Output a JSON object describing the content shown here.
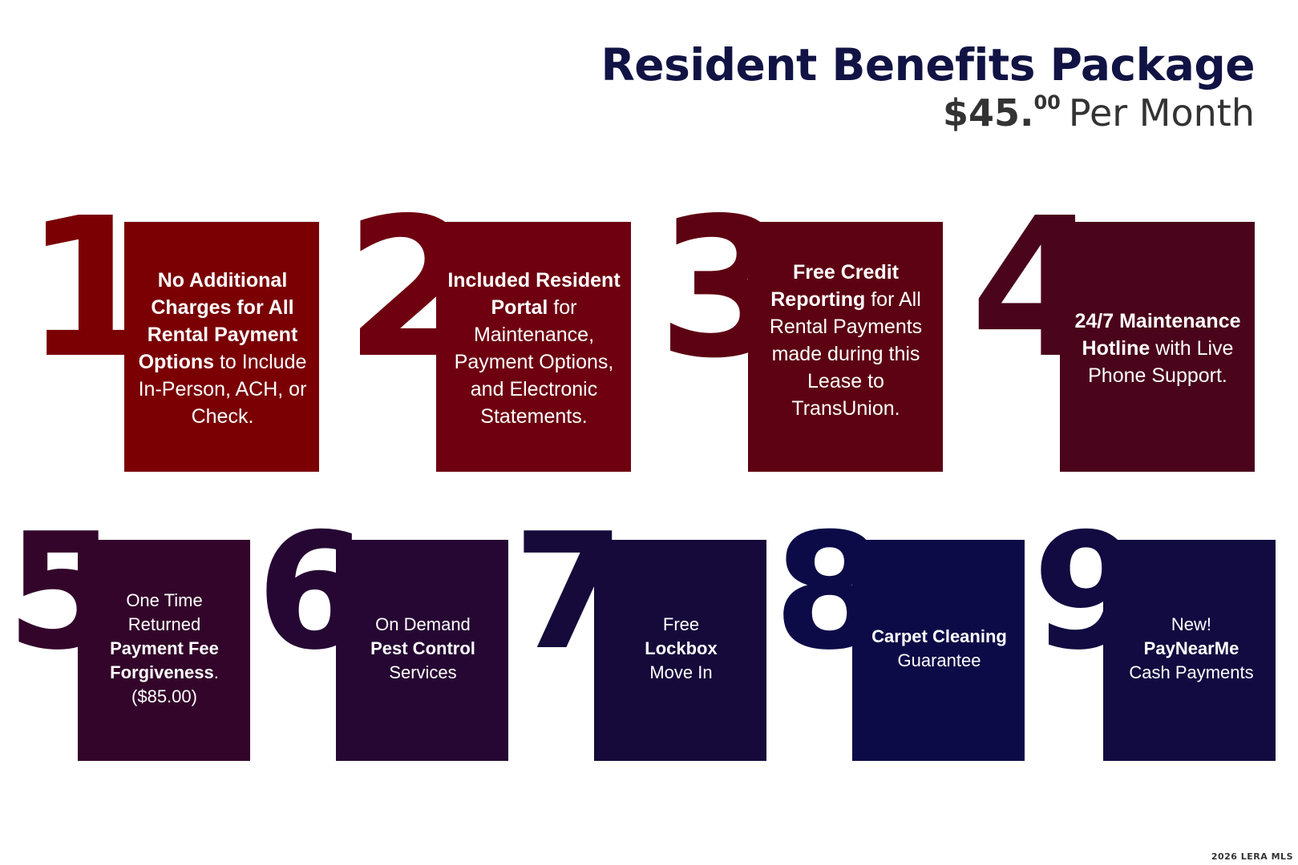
{
  "header": {
    "title": "Resident Benefits Package",
    "price_dollars": "$45.",
    "price_cents": "00",
    "price_unit": "Per Month"
  },
  "benefits": [
    {
      "number": "1",
      "color": "#7a0004",
      "text": [
        {
          "bold": "No Additional Charges for All Rental Payment Options",
          "plain": " to Include In-Person, ACH, or Check."
        }
      ]
    },
    {
      "number": "2",
      "color": "#6e0010",
      "text": [
        {
          "bold": "Included Resident Portal",
          "plain": " for Maintenance, Payment Options, and Electronic Statements."
        }
      ]
    },
    {
      "number": "3",
      "color": "#5d0212",
      "text": [
        {
          "bold": "Free Credit Reporting",
          "plain": " for All Rental Payments made during this Lease to TransUnion."
        }
      ]
    },
    {
      "number": "4",
      "color": "#4a041b",
      "text": [
        {
          "bold": "24/7 Maintenance Hotline",
          "plain": " with Live Phone Support."
        }
      ]
    },
    {
      "number": "5",
      "color": "#33052a",
      "pre": "One Time Returned",
      "bold": "Payment Fee Forgiveness",
      "post": ".",
      "extra": "($85.00)"
    },
    {
      "number": "6",
      "color": "#260733",
      "pre": "On Demand",
      "bold": "Pest Control",
      "post": "",
      "extra": "Services"
    },
    {
      "number": "7",
      "color": "#160a3b",
      "pre": "Free",
      "bold": "Lockbox",
      "post": "",
      "extra": "Move In"
    },
    {
      "number": "8",
      "color": "#0d0b47",
      "pre": "",
      "bold": "Carpet Cleaning",
      "post": "",
      "extra": "Guarantee"
    },
    {
      "number": "9",
      "color": "#110b41",
      "pre": "New!",
      "bold": "PayNearMe",
      "post": "",
      "extra": "Cash Payments"
    }
  ],
  "footer": {
    "watermark": "2026 LERA MLS"
  }
}
